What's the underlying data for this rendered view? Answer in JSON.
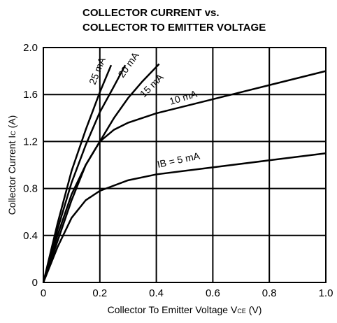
{
  "chart_data": {
    "type": "line",
    "title": [
      "COLLECTOR CURRENT vs.",
      "COLLECTOR TO EMITTER VOLTAGE"
    ],
    "y_label": {
      "text": "Collector Current  I",
      "sub": "C",
      "unit": " (A)"
    },
    "x_label": {
      "text": "Collector To Emitter Voltage  V",
      "sub": "CE",
      "unit": " (V)"
    },
    "xlim": [
      0,
      1
    ],
    "ylim": [
      0,
      2
    ],
    "xticks": [
      0,
      0.2,
      0.4,
      0.6,
      0.8,
      {
        "value": 1,
        "label": "1.0"
      }
    ],
    "yticks": [
      0,
      0.4,
      0.8,
      1.2,
      1.6,
      {
        "value": 2,
        "label": "2.0"
      }
    ],
    "grid": true,
    "color": "#000000",
    "series": [
      {
        "name": "25 mA",
        "x": [
          0,
          0.05,
          0.1,
          0.15,
          0.2,
          0.24
        ],
        "values": [
          0,
          0.5,
          0.95,
          1.3,
          1.62,
          1.85
        ]
      },
      {
        "name": "20 mA",
        "x": [
          0,
          0.05,
          0.1,
          0.15,
          0.2,
          0.25,
          0.29
        ],
        "values": [
          0,
          0.45,
          0.85,
          1.17,
          1.45,
          1.67,
          1.85
        ]
      },
      {
        "name": "15 mA",
        "x": [
          0,
          0.05,
          0.1,
          0.15,
          0.2,
          0.25,
          0.3,
          0.35,
          0.41
        ],
        "values": [
          0,
          0.4,
          0.75,
          1.0,
          1.2,
          1.4,
          1.57,
          1.71,
          1.86
        ]
      },
      {
        "name": "10 mA",
        "x": [
          0,
          0.05,
          0.1,
          0.15,
          0.2,
          0.25,
          0.3,
          0.4,
          0.6,
          0.8,
          1.0
        ],
        "values": [
          0,
          0.35,
          0.7,
          1.0,
          1.2,
          1.3,
          1.36,
          1.44,
          1.56,
          1.68,
          1.8
        ]
      },
      {
        "name": "IB = 5 mA",
        "x": [
          0,
          0.05,
          0.1,
          0.15,
          0.2,
          0.3,
          0.4,
          0.6,
          0.8,
          1.0
        ],
        "values": [
          0,
          0.3,
          0.55,
          0.7,
          0.78,
          0.87,
          0.92,
          0.98,
          1.04,
          1.1
        ]
      }
    ]
  }
}
